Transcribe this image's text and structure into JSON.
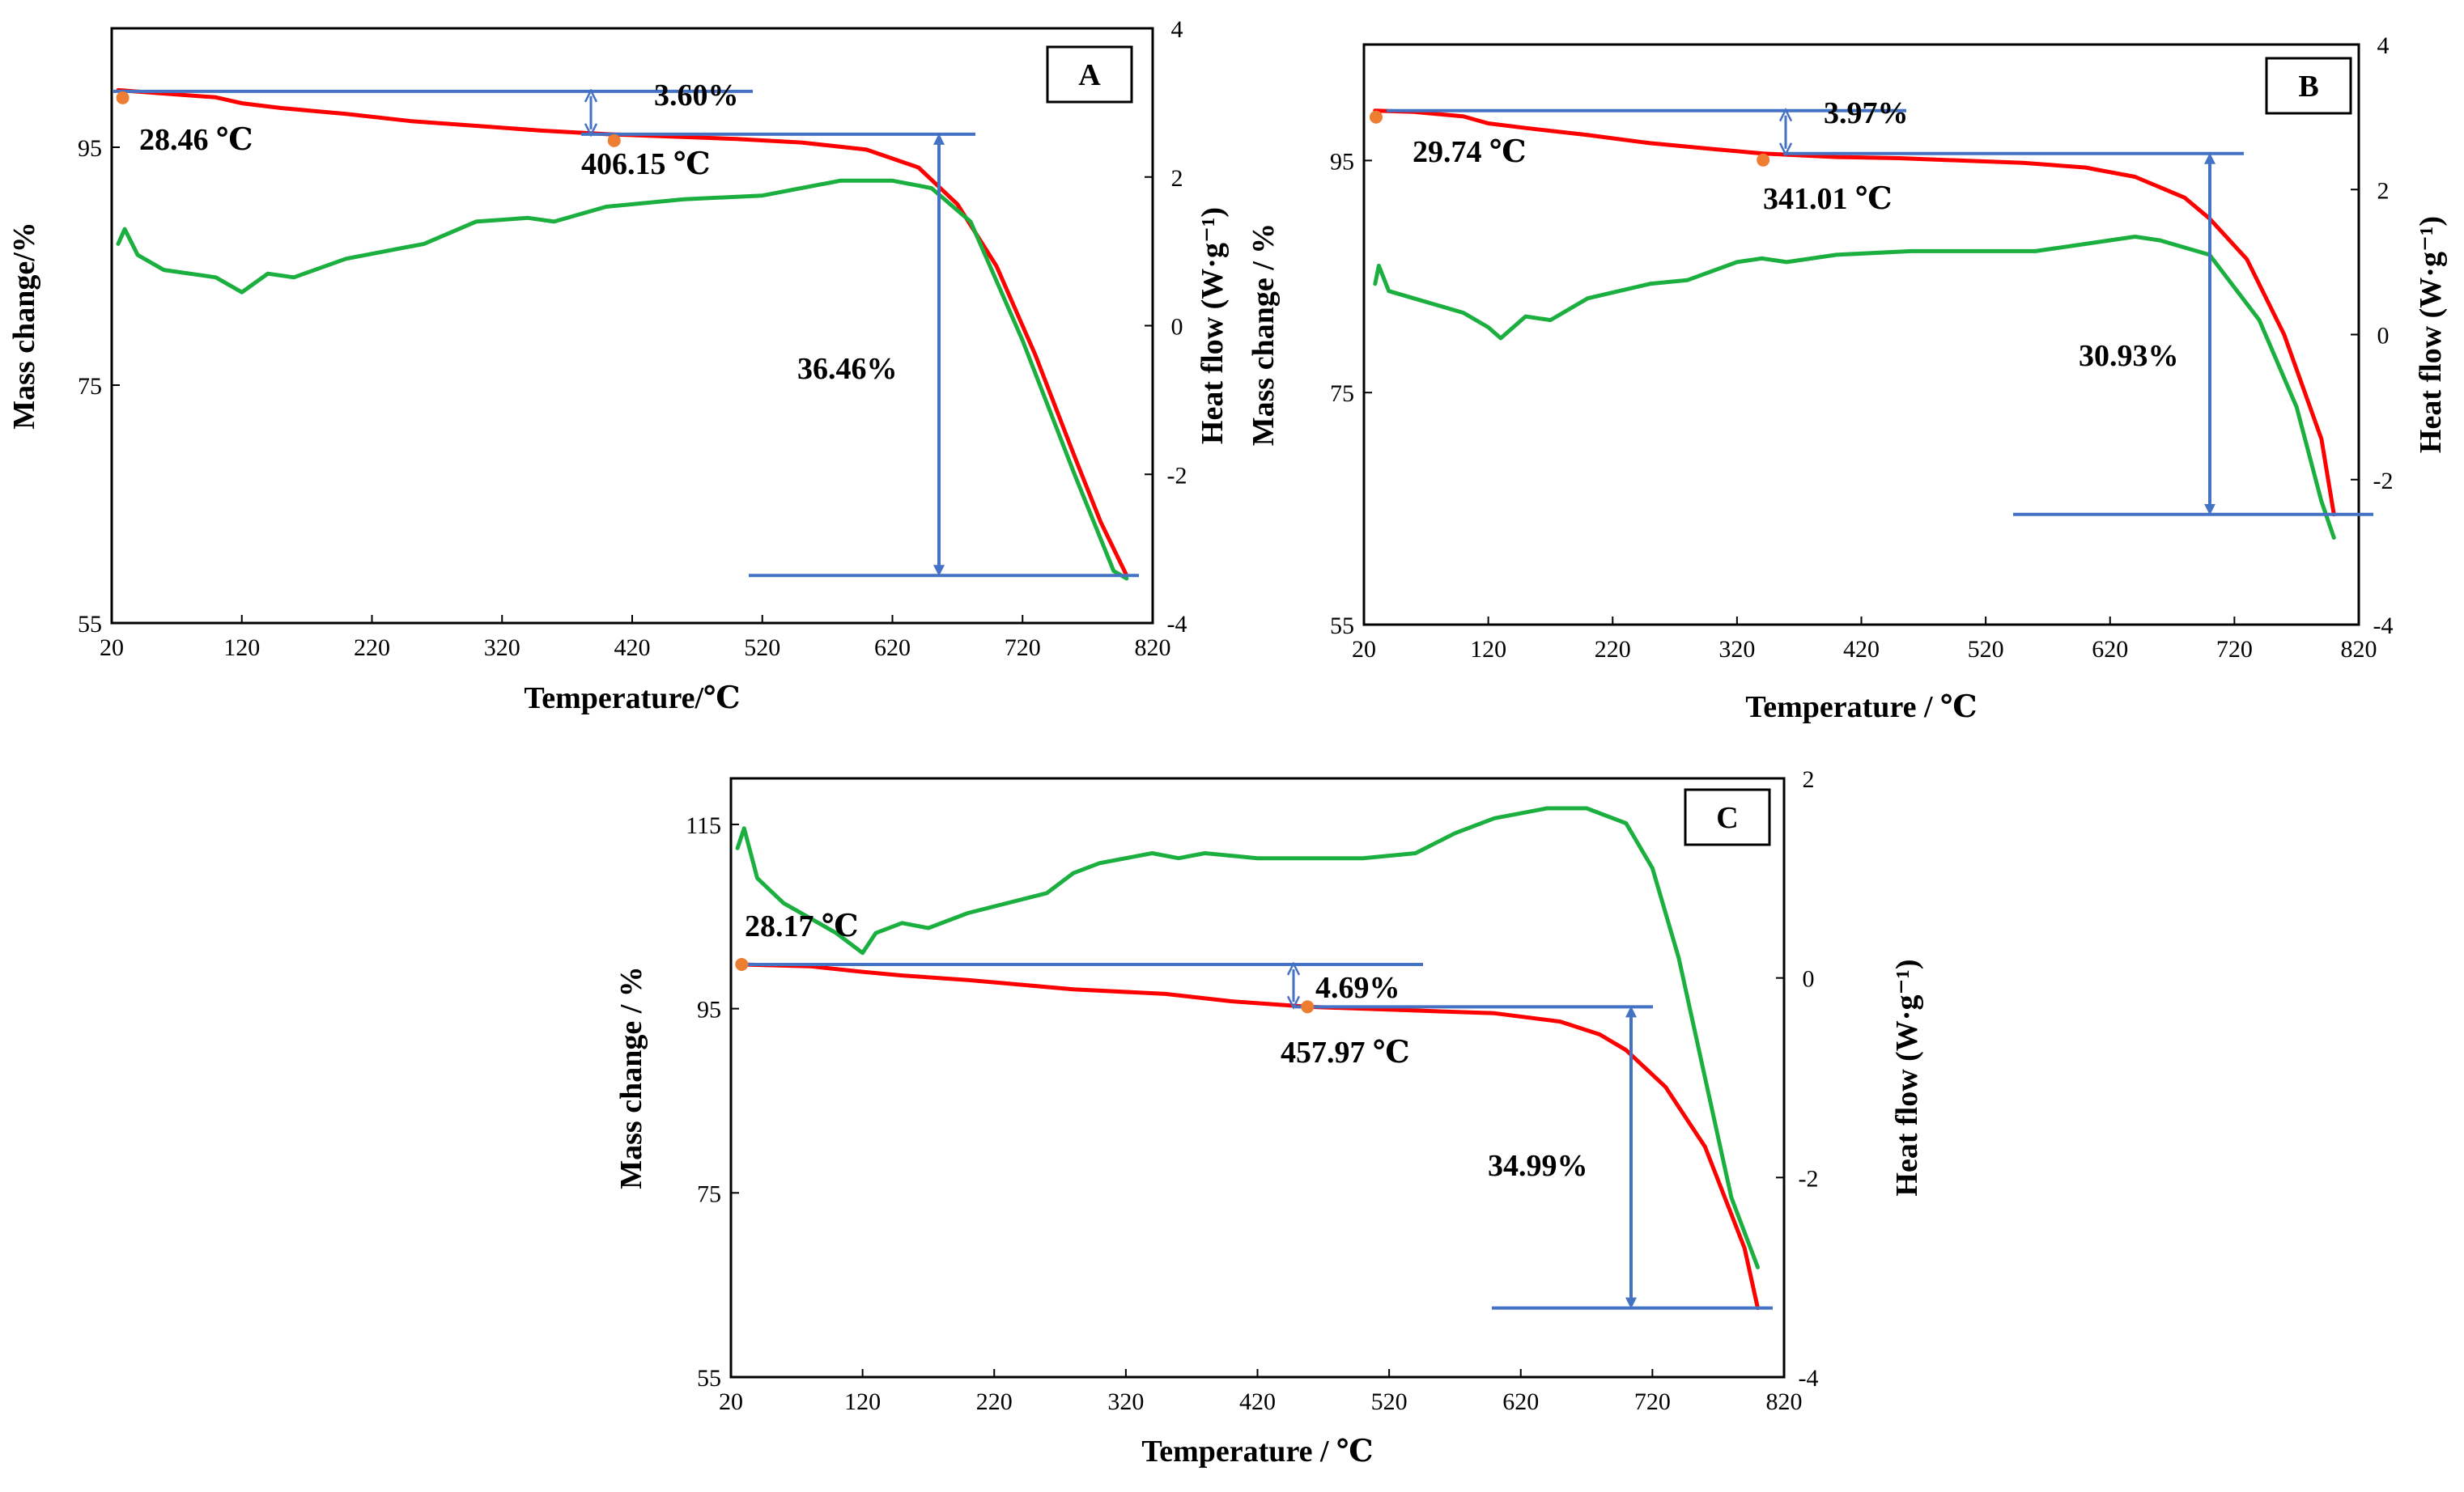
{
  "figure": {
    "colors": {
      "mass": "#ff0000",
      "heat": "#1aaf3e",
      "guide": "#4472c4",
      "marker": "#ed7d31",
      "frame": "#000000"
    }
  },
  "chart_data": [
    {
      "type": "line",
      "panel": "A",
      "xlabel": "Temperature/℃",
      "ylabel_left": "Mass change/%",
      "ylabel_right": "Heat flow (W·g⁻¹)",
      "xlim": [
        20,
        820
      ],
      "xticks": [
        20,
        120,
        220,
        320,
        420,
        520,
        620,
        720,
        820
      ],
      "ylim_left": [
        55,
        105
      ],
      "yticks_left": [
        55,
        75,
        95
      ],
      "ylim_right": [
        -4,
        4
      ],
      "yticks_right": [
        -4,
        -2,
        0,
        2,
        4
      ],
      "series": [
        {
          "name": "Mass change",
          "axis": "left",
          "x": [
            25,
            50,
            100,
            120,
            150,
            200,
            250,
            300,
            350,
            400,
            450,
            500,
            550,
            600,
            640,
            670,
            700,
            730,
            760,
            780,
            800
          ],
          "values": [
            99.8,
            99.6,
            99.2,
            98.7,
            98.3,
            97.8,
            97.2,
            96.8,
            96.4,
            96.1,
            95.9,
            95.7,
            95.4,
            94.8,
            93.3,
            90.2,
            85.0,
            77.5,
            69.0,
            63.5,
            59.0
          ]
        },
        {
          "name": "Heat flow",
          "axis": "right",
          "x": [
            25,
            30,
            40,
            60,
            100,
            120,
            140,
            160,
            200,
            260,
            300,
            340,
            360,
            400,
            460,
            520,
            580,
            620,
            650,
            680,
            720,
            760,
            790,
            800
          ],
          "values": [
            1.1,
            1.3,
            0.95,
            0.75,
            0.65,
            0.45,
            0.7,
            0.65,
            0.9,
            1.1,
            1.4,
            1.45,
            1.4,
            1.6,
            1.7,
            1.75,
            1.95,
            1.95,
            1.85,
            1.4,
            -0.2,
            -2.0,
            -3.3,
            -3.4
          ]
        }
      ],
      "annotations": [
        {
          "label": "28.46 ℃",
          "x": 28.46,
          "y": 99.7
        },
        {
          "label": "406.15 ℃",
          "x": 406.15,
          "y": 96.1
        },
        {
          "label": "3.60%",
          "value": 3.6
        },
        {
          "label": "36.46%",
          "value": 36.46
        }
      ]
    },
    {
      "type": "line",
      "panel": "B",
      "xlabel": "Temperature / ℃",
      "ylabel_left": "Mass change / %",
      "ylabel_right": "Heat flow (W·g⁻¹)",
      "xlim": [
        20,
        820
      ],
      "xticks": [
        20,
        120,
        220,
        320,
        420,
        520,
        620,
        720,
        820
      ],
      "ylim_left": [
        55,
        105
      ],
      "yticks_left": [
        55,
        75,
        95
      ],
      "ylim_right": [
        -4,
        4
      ],
      "yticks_right": [
        -4,
        -2,
        0,
        2,
        4
      ],
      "series": [
        {
          "name": "Mass change",
          "axis": "left",
          "x": [
            29,
            60,
            100,
            120,
            150,
            200,
            250,
            300,
            341,
            400,
            450,
            500,
            550,
            600,
            640,
            680,
            700,
            730,
            760,
            790,
            800
          ],
          "values": [
            99.3,
            99.2,
            98.8,
            98.2,
            97.8,
            97.2,
            96.5,
            96.0,
            95.6,
            95.3,
            95.2,
            95.0,
            94.8,
            94.4,
            93.6,
            91.8,
            90.0,
            86.5,
            80.0,
            71.0,
            64.5
          ]
        },
        {
          "name": "Heat flow",
          "axis": "right",
          "x": [
            29,
            32,
            40,
            60,
            100,
            120,
            130,
            150,
            170,
            200,
            250,
            280,
            320,
            340,
            360,
            400,
            460,
            520,
            560,
            600,
            640,
            660,
            700,
            740,
            770,
            790,
            800
          ],
          "values": [
            0.7,
            0.95,
            0.6,
            0.5,
            0.3,
            0.1,
            -0.05,
            0.25,
            0.2,
            0.5,
            0.7,
            0.75,
            1.0,
            1.05,
            1.0,
            1.1,
            1.15,
            1.15,
            1.15,
            1.25,
            1.35,
            1.3,
            1.1,
            0.2,
            -1.0,
            -2.3,
            -2.8
          ]
        }
      ],
      "annotations": [
        {
          "label": "29.74 ℃",
          "x": 29.74,
          "y": 99.3
        },
        {
          "label": "341.01 ℃",
          "x": 341.01,
          "y": 95.6
        },
        {
          "label": "3.97%",
          "value": 3.97
        },
        {
          "label": "30.93%",
          "value": 30.93
        }
      ]
    },
    {
      "type": "line",
      "panel": "C",
      "xlabel": "Temperature / ℃",
      "ylabel_left": "Mass change / %",
      "ylabel_right": "Heat flow (W·g⁻¹)",
      "xlim": [
        20,
        820
      ],
      "xticks": [
        20,
        120,
        220,
        320,
        420,
        520,
        620,
        720,
        820
      ],
      "ylim_left": [
        55,
        120
      ],
      "yticks_left": [
        55,
        75,
        95,
        115
      ],
      "ylim_right": [
        -4,
        2
      ],
      "yticks_right": [
        -4,
        -2,
        0,
        2
      ],
      "series": [
        {
          "name": "Mass change",
          "axis": "left",
          "x": [
            28,
            80,
            120,
            150,
            200,
            280,
            350,
            400,
            458,
            520,
            600,
            650,
            680,
            700,
            730,
            760,
            790,
            800
          ],
          "values": [
            99.8,
            99.6,
            99.0,
            98.6,
            98.1,
            97.1,
            96.6,
            95.8,
            95.2,
            94.9,
            94.5,
            93.6,
            92.2,
            90.5,
            86.5,
            80.0,
            69.0,
            62.5
          ]
        },
        {
          "name": "Heat flow",
          "axis": "right",
          "x": [
            25,
            30,
            40,
            60,
            100,
            120,
            130,
            150,
            170,
            200,
            260,
            280,
            300,
            340,
            360,
            380,
            420,
            460,
            500,
            540,
            570,
            600,
            640,
            670,
            700,
            720,
            740,
            760,
            780,
            800
          ],
          "values": [
            1.3,
            1.5,
            1.0,
            0.75,
            0.45,
            0.25,
            0.45,
            0.55,
            0.5,
            0.65,
            0.85,
            1.05,
            1.15,
            1.25,
            1.2,
            1.25,
            1.2,
            1.2,
            1.2,
            1.25,
            1.45,
            1.6,
            1.7,
            1.7,
            1.55,
            1.1,
            0.2,
            -1.0,
            -2.2,
            -2.9
          ]
        }
      ],
      "annotations": [
        {
          "label": "28.17 ℃",
          "x": 28.17,
          "y": 99.8
        },
        {
          "label": "457.97 ℃",
          "x": 457.97,
          "y": 95.2
        },
        {
          "label": "4.69%",
          "value": 4.69
        },
        {
          "label": "34.99%",
          "value": 34.99
        }
      ]
    }
  ]
}
